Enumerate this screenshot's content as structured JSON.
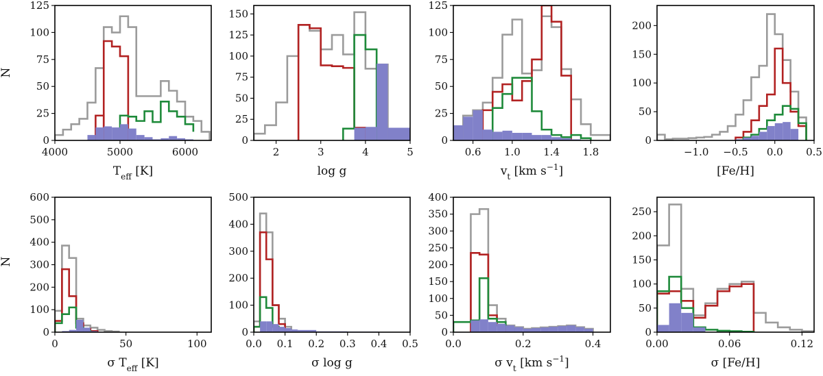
{
  "figure": {
    "ylabel_top": "N",
    "ylabel_bottom": "N"
  },
  "chart_data": [
    {
      "type": "histogram",
      "id": "teff",
      "xlabel": "T_eff [K]",
      "xlim": [
        4000,
        6400
      ],
      "ylim": [
        0,
        125
      ],
      "xticks": [
        4000,
        5000,
        6000
      ],
      "yticks": [
        0,
        25,
        50,
        75,
        100,
        125
      ],
      "series": [
        {
          "color": "#9b9b9b",
          "fill": false,
          "edges": [
            4000,
            4125,
            4250,
            4375,
            4500,
            4625,
            4750,
            4875,
            5000,
            5125,
            5250,
            5375,
            5500,
            5625,
            5750,
            5875,
            6000,
            6125,
            6250,
            6375
          ],
          "counts": [
            5,
            10,
            15,
            20,
            35,
            67,
            105,
            100,
            115,
            105,
            41,
            41,
            41,
            55,
            46,
            36,
            22,
            18,
            8
          ]
        },
        {
          "color": "#b22222",
          "fill": false,
          "edges": [
            4750,
            4875,
            5000,
            5125
          ],
          "counts": [
            92,
            87,
            78
          ]
        },
        {
          "color": "#b22222",
          "fill": false,
          "edges": [
            4625,
            4750
          ],
          "counts": [
            23
          ]
        },
        {
          "color": "#1e8a3a",
          "fill": false,
          "edges": [
            5000,
            5125,
            5250,
            5375,
            5500,
            5625,
            5750,
            5875,
            6000,
            6125
          ],
          "counts": [
            23,
            22,
            18,
            27,
            17,
            36,
            27,
            22,
            15,
            8
          ]
        },
        {
          "color": "#8181c9",
          "fill": true,
          "edges": [
            4500,
            4625,
            4750,
            4875,
            5000,
            5125,
            5250,
            5375,
            5500,
            5625,
            5750,
            5875,
            6000,
            6125
          ],
          "counts": [
            5,
            12,
            13,
            12,
            15,
            11,
            5,
            3,
            1,
            2,
            4,
            2,
            1,
            1
          ]
        }
      ]
    },
    {
      "type": "histogram",
      "id": "logg",
      "xlabel": "log g",
      "xlim": [
        1.5,
        5.0
      ],
      "ylim": [
        0,
        160
      ],
      "xticks": [
        2,
        3,
        4,
        5
      ],
      "yticks": [
        0,
        25,
        50,
        75,
        100,
        125,
        150
      ],
      "series": [
        {
          "color": "#9b9b9b",
          "fill": false,
          "edges": [
            1.5,
            1.75,
            2.0,
            2.25,
            2.5,
            2.75,
            3.0,
            3.25,
            3.5,
            3.75,
            4.0,
            4.25,
            4.5
          ],
          "counts": [
            8,
            18,
            45,
            100,
            137,
            130,
            108,
            125,
            102,
            152,
            85,
            90
          ]
        },
        {
          "color": "#b22222",
          "fill": false,
          "edges": [
            2.5,
            2.75,
            3.0,
            3.25,
            3.5,
            3.75,
            4.0
          ],
          "counts": [
            137,
            133,
            89,
            88,
            86,
            15
          ]
        },
        {
          "color": "#1e8a3a",
          "fill": false,
          "edges": [
            3.5,
            3.75,
            4.0,
            4.25
          ],
          "counts": [
            14,
            125,
            108
          ]
        },
        {
          "color": "#8181c9",
          "fill": true,
          "edges": [
            3.75,
            4.0,
            4.25,
            4.5,
            5.0
          ],
          "counts": [
            15,
            16,
            91,
            15
          ]
        }
      ]
    },
    {
      "type": "histogram",
      "id": "vt",
      "xlabel": "v_t [km s^-1]",
      "xlim": [
        0.4,
        2.0
      ],
      "ylim": [
        0,
        125
      ],
      "xticks": [
        0.6,
        1.0,
        1.4,
        1.8
      ],
      "yticks": [
        0,
        25,
        50,
        75,
        100,
        125
      ],
      "series": [
        {
          "color": "#9b9b9b",
          "fill": false,
          "edges": [
            0.5,
            0.6,
            0.7,
            0.8,
            0.9,
            1.0,
            1.1,
            1.2,
            1.3,
            1.4,
            1.5,
            1.6,
            1.7,
            1.8,
            1.9,
            2.0
          ],
          "counts": [
            23,
            28,
            35,
            58,
            98,
            112,
            62,
            65,
            115,
            105,
            66,
            38,
            15,
            5,
            5
          ]
        },
        {
          "color": "#b22222",
          "fill": false,
          "edges": [
            0.7,
            0.8,
            0.9,
            1.0,
            1.1,
            1.2,
            1.3,
            1.4,
            1.5,
            1.6
          ],
          "counts": [
            28,
            45,
            52,
            37,
            55,
            75,
            125,
            110,
            60
          ]
        },
        {
          "color": "#1e8a3a",
          "fill": false,
          "edges": [
            0.8,
            0.9,
            1.0,
            1.1,
            1.2,
            1.3,
            1.4,
            1.5,
            1.6,
            1.7,
            1.8
          ],
          "counts": [
            30,
            43,
            58,
            58,
            27,
            10,
            5,
            3,
            5,
            2
          ]
        },
        {
          "color": "#8181c9",
          "fill": true,
          "edges": [
            0.4,
            0.5,
            0.6,
            0.7,
            0.8,
            0.9,
            1.0,
            1.1,
            1.2,
            1.3,
            1.4,
            1.5,
            1.6,
            1.7
          ],
          "counts": [
            14,
            22,
            28,
            10,
            8,
            9,
            7,
            7,
            5,
            5,
            3,
            2,
            1
          ]
        }
      ]
    },
    {
      "type": "histogram",
      "id": "feh",
      "xlabel": "[Fe/H]",
      "xlim": [
        -1.5,
        0.5
      ],
      "ylim": [
        0,
        235
      ],
      "xticks": [
        -1.0,
        -0.5,
        0.0,
        0.5
      ],
      "yticks": [
        0,
        50,
        100,
        150,
        200
      ],
      "series": [
        {
          "color": "#9b9b9b",
          "fill": false,
          "edges": [
            -1.5,
            -1.4,
            -1.3,
            -1.2,
            -1.1,
            -1.0,
            -0.9,
            -0.8,
            -0.7,
            -0.6,
            -0.5,
            -0.4,
            -0.3,
            -0.2,
            -0.1,
            0.0,
            0.1,
            0.2,
            0.3,
            0.4
          ],
          "counts": [
            10,
            2,
            3,
            3,
            4,
            5,
            6,
            10,
            15,
            25,
            45,
            70,
            110,
            130,
            220,
            185,
            140,
            85,
            40
          ]
        },
        {
          "color": "#b22222",
          "fill": false,
          "edges": [
            -0.5,
            -0.4,
            -0.3,
            -0.2,
            -0.1,
            0.0,
            0.1,
            0.2,
            0.3,
            0.4
          ],
          "counts": [
            5,
            15,
            35,
            60,
            80,
            160,
            100,
            50,
            25
          ]
        },
        {
          "color": "#1e8a3a",
          "fill": false,
          "edges": [
            -0.4,
            -0.3,
            -0.2,
            -0.1,
            0.0,
            0.1,
            0.2,
            0.3,
            0.4
          ],
          "counts": [
            5,
            10,
            20,
            35,
            45,
            60,
            55,
            30
          ]
        },
        {
          "color": "#8181c9",
          "fill": true,
          "edges": [
            -0.5,
            -0.4,
            -0.3,
            -0.2,
            -0.1,
            0.0,
            0.1,
            0.2,
            0.3
          ],
          "counts": [
            2,
            5,
            8,
            15,
            25,
            30,
            32,
            20
          ]
        }
      ]
    },
    {
      "type": "histogram",
      "id": "sigma-teff",
      "xlabel": "σ T_eff [K]",
      "xlim": [
        0,
        110
      ],
      "ylim": [
        0,
        600
      ],
      "xticks": [
        0,
        50,
        100
      ],
      "yticks": [
        0,
        100,
        200,
        300,
        400,
        500,
        600
      ],
      "series": [
        {
          "color": "#9b9b9b",
          "fill": false,
          "edges": [
            0,
            5,
            10,
            15,
            20,
            25,
            30,
            35,
            40,
            45
          ],
          "counts": [
            95,
            385,
            330,
            60,
            30,
            20,
            10,
            5,
            3
          ]
        },
        {
          "color": "#b22222",
          "fill": false,
          "edges": [
            0,
            5,
            10,
            15,
            20,
            25,
            30
          ],
          "counts": [
            50,
            280,
            160,
            40,
            15,
            5
          ]
        },
        {
          "color": "#1e8a3a",
          "fill": false,
          "edges": [
            0,
            5,
            10,
            15,
            20,
            25
          ],
          "counts": [
            40,
            80,
            110,
            20,
            5
          ]
        },
        {
          "color": "#8181c9",
          "fill": true,
          "edges": [
            5,
            10,
            15,
            20,
            25,
            30
          ],
          "counts": [
            5,
            10,
            55,
            20,
            5
          ]
        }
      ]
    },
    {
      "type": "histogram",
      "id": "sigma-logg",
      "xlabel": "σ log g",
      "xlim": [
        0,
        0.5
      ],
      "ylim": [
        0,
        500
      ],
      "xticks": [
        0.0,
        0.1,
        0.2,
        0.3,
        0.4,
        0.5
      ],
      "yticks": [
        0,
        100,
        200,
        300,
        400,
        500
      ],
      "series": [
        {
          "color": "#9b9b9b",
          "fill": false,
          "edges": [
            0.0,
            0.02,
            0.04,
            0.06,
            0.08,
            0.1,
            0.12,
            0.14
          ],
          "counts": [
            40,
            440,
            370,
            100,
            50,
            20,
            5
          ]
        },
        {
          "color": "#b22222",
          "fill": false,
          "edges": [
            0.0,
            0.02,
            0.04,
            0.06,
            0.08,
            0.1
          ],
          "counts": [
            20,
            370,
            270,
            100,
            30
          ]
        },
        {
          "color": "#1e8a3a",
          "fill": false,
          "edges": [
            0.0,
            0.02,
            0.04,
            0.06,
            0.08
          ],
          "counts": [
            20,
            130,
            90,
            20
          ]
        },
        {
          "color": "#8181c9",
          "fill": true,
          "edges": [
            0.02,
            0.04,
            0.06,
            0.08,
            0.1,
            0.12,
            0.14,
            0.2,
            0.3,
            0.4,
            0.5
          ],
          "counts": [
            40,
            40,
            30,
            20,
            15,
            10,
            8,
            3,
            2,
            1
          ]
        }
      ]
    },
    {
      "type": "histogram",
      "id": "sigma-vt",
      "xlabel": "σ v_t [km s^-1]",
      "xlim": [
        0,
        0.45
      ],
      "ylim": [
        0,
        400
      ],
      "xticks": [
        0.0,
        0.2,
        0.4
      ],
      "yticks": [
        0,
        50,
        100,
        150,
        200,
        250,
        300,
        350,
        400
      ],
      "series": [
        {
          "color": "#9b9b9b",
          "fill": false,
          "edges": [
            0.05,
            0.075,
            0.1,
            0.125,
            0.15,
            0.175,
            0.2,
            0.225,
            0.25,
            0.275,
            0.3,
            0.325,
            0.35,
            0.375,
            0.4
          ],
          "counts": [
            350,
            365,
            80,
            40,
            20,
            15,
            10,
            12,
            14,
            16,
            18,
            20,
            15,
            10
          ]
        },
        {
          "color": "#b22222",
          "fill": false,
          "edges": [
            0.05,
            0.075,
            0.1,
            0.125,
            0.15
          ],
          "counts": [
            235,
            230,
            50,
            20
          ]
        },
        {
          "color": "#1e8a3a",
          "fill": false,
          "edges": [
            0.0,
            0.05,
            0.075,
            0.1,
            0.125,
            0.15,
            0.175
          ],
          "counts": [
            30,
            35,
            160,
            40,
            30,
            10
          ]
        },
        {
          "color": "#8181c9",
          "fill": true,
          "edges": [
            0.05,
            0.075,
            0.1,
            0.125,
            0.15,
            0.175,
            0.2,
            0.225,
            0.25,
            0.275,
            0.3,
            0.325,
            0.35,
            0.375,
            0.4
          ],
          "counts": [
            35,
            38,
            30,
            25,
            20,
            15,
            10,
            12,
            14,
            16,
            18,
            20,
            15,
            10
          ]
        }
      ]
    },
    {
      "type": "histogram",
      "id": "sigma-feh",
      "xlabel": "σ [Fe/H]",
      "xlim": [
        0,
        0.13
      ],
      "ylim": [
        0,
        280
      ],
      "xticks": [
        0.0,
        0.06,
        0.12
      ],
      "yticks": [
        0,
        50,
        100,
        150,
        200,
        250
      ],
      "series": [
        {
          "color": "#9b9b9b",
          "fill": false,
          "edges": [
            0.0,
            0.01,
            0.02,
            0.03,
            0.04,
            0.05,
            0.06,
            0.07,
            0.08,
            0.09,
            0.1,
            0.11,
            0.12,
            0.13
          ],
          "counts": [
            180,
            265,
            90,
            35,
            60,
            90,
            100,
            105,
            40,
            20,
            10,
            5,
            2
          ]
        },
        {
          "color": "#b22222",
          "fill": false,
          "edges": [
            0.0,
            0.01,
            0.02,
            0.03,
            0.04,
            0.05,
            0.06,
            0.07,
            0.08
          ],
          "counts": [
            80,
            85,
            65,
            30,
            55,
            85,
            95,
            100
          ]
        },
        {
          "color": "#1e8a3a",
          "fill": false,
          "edges": [
            0.0,
            0.01,
            0.02,
            0.03,
            0.04,
            0.05,
            0.06,
            0.07,
            0.08
          ],
          "counts": [
            85,
            115,
            50,
            10,
            5,
            3,
            2,
            1
          ]
        },
        {
          "color": "#8181c9",
          "fill": true,
          "edges": [
            0.0,
            0.01,
            0.02,
            0.03,
            0.04
          ],
          "counts": [
            15,
            60,
            40,
            10
          ]
        }
      ]
    }
  ]
}
